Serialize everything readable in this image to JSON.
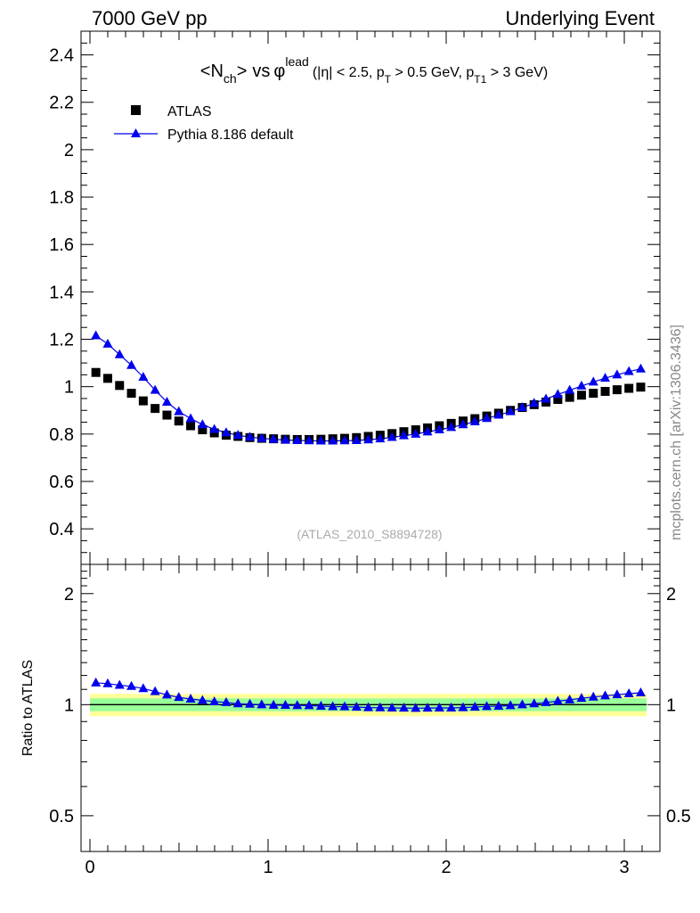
{
  "header": {
    "left": "7000 GeV pp",
    "right": "Underlying Event"
  },
  "side_label": "mcplots.cern.ch [arXiv:1306.3436]",
  "title": {
    "nch_open": "<N",
    "nch_sub": "ch",
    "nch_close": ">",
    "vs": "vs",
    "phi": "φ",
    "phi_sup": "lead",
    "cuts_open": "(|η| < 2.5, p",
    "pt_sub": "T",
    "cuts_mid": " > 0.5 GeV, p",
    "pt1_sub": "T1",
    "cuts_close": " > 3 GeV)"
  },
  "watermark": "(ATLAS_2010_S8894728)",
  "ratio_ylabel": "Ratio to ATLAS",
  "colors": {
    "atlas": "#000000",
    "pythia": "#0000ee",
    "band_inner": "#99ff99",
    "band_outer": "#ffff99"
  },
  "chart_data": [
    {
      "type": "scatter",
      "panel": "main",
      "title": "<Nch> vs φlead (|η| < 2.5, pT > 0.5 GeV, pT1 > 3 GeV)",
      "xlim": [
        -0.05,
        3.2
      ],
      "ylim": [
        0.25,
        2.5
      ],
      "yticks": [
        0.4,
        0.6,
        0.8,
        1,
        1.2,
        1.4,
        1.6,
        1.8,
        2,
        2.2,
        2.4
      ],
      "ytick_labels": [
        "0.4",
        "0.6",
        "0.8",
        "1",
        "1.2",
        "1.4",
        "1.6",
        "1.8",
        "2",
        "2.2",
        "2.4"
      ],
      "grid": false,
      "legend_position": "top-left",
      "x": [
        0.0333,
        0.0998,
        0.1663,
        0.2328,
        0.2993,
        0.3658,
        0.4323,
        0.4988,
        0.5653,
        0.6318,
        0.6983,
        0.7648,
        0.8313,
        0.8978,
        0.9643,
        1.0308,
        1.0973,
        1.1638,
        1.2303,
        1.2968,
        1.3633,
        1.4298,
        1.4963,
        1.5628,
        1.6293,
        1.6958,
        1.7623,
        1.8288,
        1.8953,
        1.9618,
        2.0283,
        2.0948,
        2.1613,
        2.2278,
        2.2943,
        2.3608,
        2.4273,
        2.4938,
        2.5603,
        2.6268,
        2.6933,
        2.7598,
        2.8263,
        2.8928,
        2.9593,
        3.0258,
        3.0923
      ],
      "series": [
        {
          "name": "ATLAS",
          "marker": "square",
          "values": [
            1.06,
            1.035,
            1.005,
            0.972,
            0.94,
            0.908,
            0.88,
            0.855,
            0.835,
            0.818,
            0.805,
            0.795,
            0.79,
            0.785,
            0.782,
            0.78,
            0.778,
            0.777,
            0.777,
            0.778,
            0.78,
            0.782,
            0.785,
            0.79,
            0.795,
            0.802,
            0.81,
            0.818,
            0.826,
            0.835,
            0.845,
            0.855,
            0.865,
            0.876,
            0.888,
            0.9,
            0.912,
            0.924,
            0.935,
            0.946,
            0.955,
            0.964,
            0.972,
            0.98,
            0.987,
            0.993,
            0.998
          ]
        },
        {
          "name": "Pythia 8.186 default",
          "marker": "triangle",
          "line": true,
          "values": [
            1.215,
            1.18,
            1.135,
            1.09,
            1.04,
            0.985,
            0.935,
            0.895,
            0.865,
            0.84,
            0.82,
            0.806,
            0.795,
            0.787,
            0.782,
            0.778,
            0.775,
            0.773,
            0.772,
            0.771,
            0.771,
            0.772,
            0.773,
            0.776,
            0.78,
            0.786,
            0.793,
            0.8,
            0.809,
            0.818,
            0.828,
            0.84,
            0.852,
            0.866,
            0.88,
            0.895,
            0.912,
            0.93,
            0.948,
            0.967,
            0.985,
            1.003,
            1.02,
            1.036,
            1.05,
            1.064,
            1.075
          ]
        }
      ]
    },
    {
      "type": "scatter",
      "panel": "ratio",
      "ylabel": "Ratio to ATLAS",
      "log_y": true,
      "xlim": [
        -0.05,
        3.2
      ],
      "ylim": [
        0.4,
        2.4
      ],
      "yticks": [
        0.5,
        1,
        2
      ],
      "ytick_labels": [
        "0.5",
        "1",
        "2"
      ],
      "xticks": [
        0,
        1,
        2,
        3
      ],
      "xtick_labels": [
        "0",
        "1",
        "2",
        "3"
      ],
      "band_inner": [
        0.96,
        1.04
      ],
      "band_outer": [
        0.93,
        1.07
      ],
      "reference": 1,
      "series": [
        {
          "name": "Pythia 8.186 default",
          "marker": "triangle",
          "line": true,
          "values": [
            1.146,
            1.14,
            1.129,
            1.121,
            1.106,
            1.085,
            1.063,
            1.047,
            1.036,
            1.027,
            1.019,
            1.014,
            1.006,
            1.003,
            1.0,
            0.997,
            0.996,
            0.995,
            0.994,
            0.991,
            0.988,
            0.987,
            0.985,
            0.982,
            0.981,
            0.98,
            0.979,
            0.978,
            0.979,
            0.98,
            0.98,
            0.982,
            0.985,
            0.989,
            0.991,
            0.994,
            1.0,
            1.006,
            1.014,
            1.022,
            1.031,
            1.041,
            1.049,
            1.057,
            1.064,
            1.071,
            1.077
          ]
        }
      ]
    }
  ]
}
